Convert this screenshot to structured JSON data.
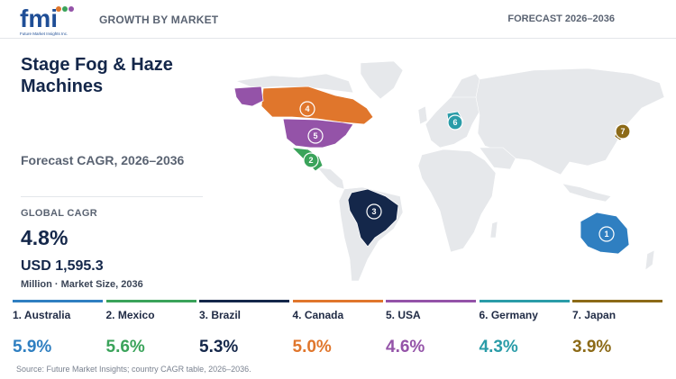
{
  "header": {
    "logo_text": "fmi",
    "logo_subtext": "Future Market Insights Inc.",
    "left_label": "GROWTH BY MARKET",
    "right_label": "FORECAST 2026–2036"
  },
  "title": "Stage Fog & Haze Machines",
  "subtitle": "Forecast CAGR, 2026–2036",
  "global": {
    "label": "GLOBAL CAGR",
    "value": "4.8%",
    "market_size": "USD 1,595.3",
    "market_unit": "Million · Market Size, 2036"
  },
  "colors": {
    "Australia": "#2f7fc1",
    "Mexico": "#3aa35a",
    "Brazil": "#14274a",
    "Canada": "#e0762c",
    "USA": "#9453a8",
    "Germany": "#2a9ca8",
    "Japan": "#8c6a17",
    "land": "#e6e8eb"
  },
  "chart_data": {
    "type": "map",
    "title": "Stage Fog & Haze Machines",
    "subtitle": "Forecast CAGR, 2026–2036",
    "unit": "%",
    "global_cagr": 4.8,
    "market_size_2036_usd_million": 1595.3,
    "entries": [
      {
        "rank": 1,
        "country": "Australia",
        "cagr": 5.9,
        "label": "1. Australia",
        "display": "5.9%"
      },
      {
        "rank": 2,
        "country": "Mexico",
        "cagr": 5.6,
        "label": "2. Mexico",
        "display": "5.6%"
      },
      {
        "rank": 3,
        "country": "Brazil",
        "cagr": 5.3,
        "label": "3. Brazil",
        "display": "5.3%"
      },
      {
        "rank": 4,
        "country": "Canada",
        "cagr": 5.0,
        "label": "4. Canada",
        "display": "5.0%"
      },
      {
        "rank": 5,
        "country": "USA",
        "cagr": 4.6,
        "label": "5. USA",
        "display": "4.6%"
      },
      {
        "rank": 6,
        "country": "Germany",
        "cagr": 4.3,
        "label": "6. Germany",
        "display": "4.3%"
      },
      {
        "rank": 7,
        "country": "Japan",
        "cagr": 3.9,
        "label": "7. Japan",
        "display": "3.9%"
      }
    ]
  },
  "source": "Source: Future Market Insights; country CAGR table, 2026–2036."
}
